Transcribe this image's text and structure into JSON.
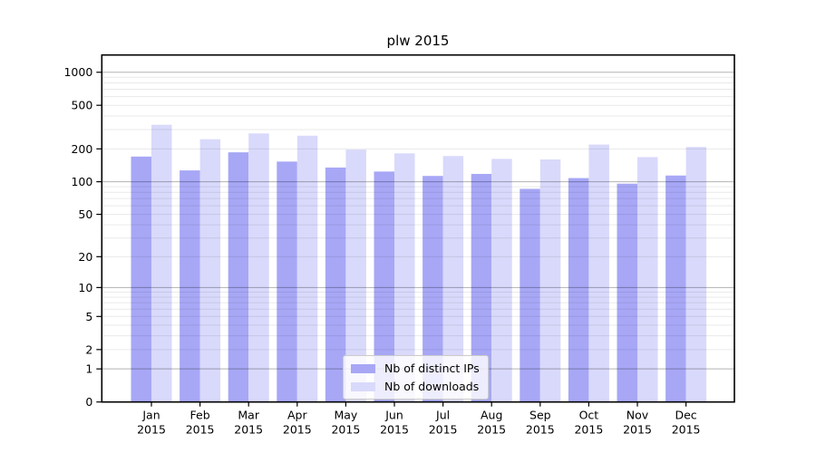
{
  "chart_data": {
    "type": "bar",
    "title": "plw 2015",
    "categories": [
      "Jan",
      "Feb",
      "Mar",
      "Apr",
      "May",
      "Jun",
      "Jul",
      "Aug",
      "Sep",
      "Oct",
      "Nov",
      "Dec"
    ],
    "xtick_second_line": "2015",
    "series": [
      {
        "name": "Nb of distinct IPs",
        "color": "#a7a7f6",
        "values": [
          170,
          127,
          186,
          153,
          135,
          124,
          113,
          118,
          86,
          108,
          96,
          114
        ]
      },
      {
        "name": "Nb of downloads",
        "color": "#d9d9fb",
        "values": [
          332,
          245,
          277,
          264,
          197,
          182,
          172,
          162,
          160,
          219,
          168,
          208
        ]
      }
    ],
    "xlabel": "",
    "ylabel": "",
    "yscale": "log1p",
    "yticks": [
      0,
      1,
      2,
      5,
      10,
      20,
      50,
      100,
      200,
      500,
      1000
    ],
    "ylim": [
      0,
      1400
    ],
    "grid": "both",
    "legend_position": "lower center",
    "colors": {
      "major_grid": "rgba(0,0,0,0.30)",
      "minor_grid": "rgba(0,0,0,0.085)",
      "spine": "#000000",
      "text": "#000000"
    }
  }
}
